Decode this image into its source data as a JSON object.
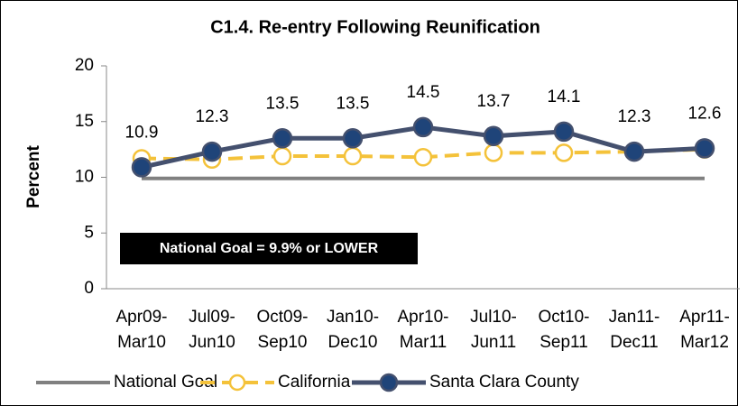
{
  "chart_data": {
    "type": "line",
    "title": "C1.4. Re-entry Following Reunification",
    "y_label": "Percent",
    "annotation": "National Goal = 9.9% or LOWER",
    "categories": [
      "Apr09-\nMar10",
      "Jul09-\nJun10",
      "Oct09-\nSep10",
      "Jan10-\nDec10",
      "Apr10-\nMar11",
      "Jul10-\nJun11",
      "Oct10-\nSep11",
      "Jan11-\nDec11",
      "Apr11-\nMar12"
    ],
    "series": [
      {
        "name": "National Goal",
        "color": "#808080",
        "style": "solid",
        "marker": "none",
        "values": [
          9.9,
          9.9,
          9.9,
          9.9,
          9.9,
          9.9,
          9.9,
          9.9,
          9.9
        ]
      },
      {
        "name": "California",
        "color": "#f4c23a",
        "style": "dashed",
        "marker": "open",
        "values": [
          11.7,
          11.6,
          11.9,
          11.9,
          11.8,
          12.2,
          12.2,
          12.3,
          12.5
        ]
      },
      {
        "name": "Santa Clara County",
        "color": "#44506e",
        "marker_color": "#1f4479",
        "style": "solid",
        "marker": "filled",
        "data_labels": true,
        "values": [
          10.9,
          12.3,
          13.5,
          13.5,
          14.5,
          13.7,
          14.1,
          12.3,
          12.6
        ]
      }
    ],
    "ylim": [
      0,
      20
    ],
    "yticks": [
      0,
      5,
      10,
      15,
      20
    ],
    "grid": false,
    "legend": "bottom"
  }
}
